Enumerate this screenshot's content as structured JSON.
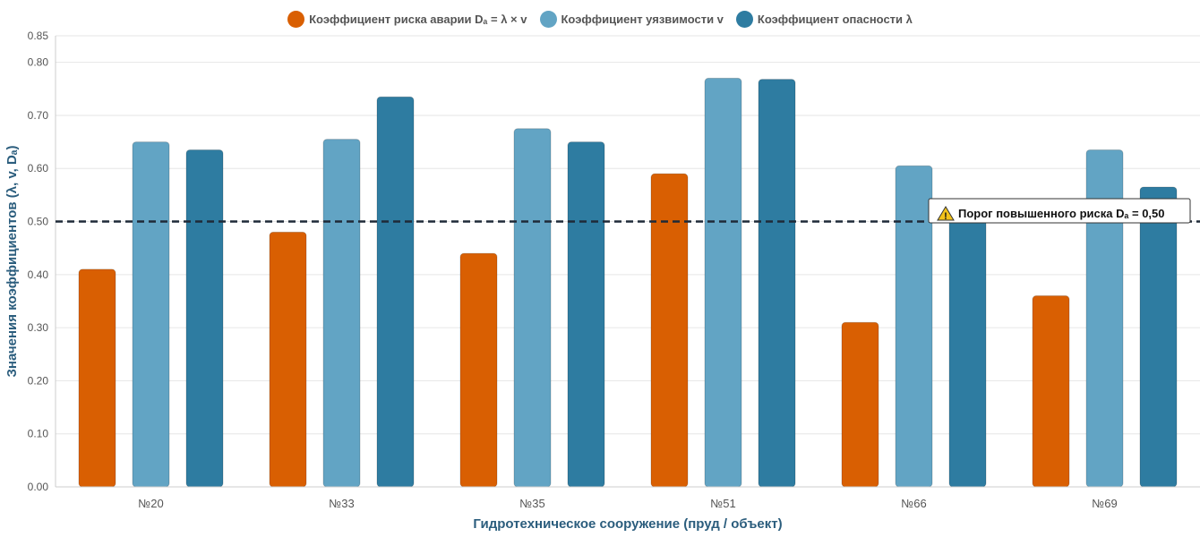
{
  "chart_data": {
    "type": "bar",
    "categories": [
      "№20",
      "№33",
      "№35",
      "№51",
      "№66",
      "№69"
    ],
    "series": [
      {
        "name": "Коэффициент риска аварии Dₐ = λ × v",
        "color": "#d95f02",
        "values": [
          0.41,
          0.48,
          0.44,
          0.59,
          0.31,
          0.36
        ]
      },
      {
        "name": "Коэффициент уязвимости v",
        "color": "#62a4c4",
        "values": [
          0.65,
          0.655,
          0.675,
          0.77,
          0.605,
          0.635
        ]
      },
      {
        "name": "Коэффициент опасности λ",
        "color": "#2e7ca1",
        "values": [
          0.635,
          0.735,
          0.65,
          0.768,
          0.51,
          0.565
        ]
      }
    ],
    "xlabel": "Гидротехническое сооружение (пруд / объект)",
    "ylabel": "Значения коэффициентов (λ, v, Dₐ)",
    "ylim": [
      0,
      0.85
    ],
    "yticks": [
      "0.00",
      "0.10",
      "0.20",
      "0.30",
      "0.40",
      "0.50",
      "0.60",
      "0.70",
      "0.80",
      "0.85"
    ],
    "ytick_values": [
      0,
      0.1,
      0.2,
      0.3,
      0.4,
      0.5,
      0.6,
      0.7,
      0.8,
      0.85
    ],
    "threshold": {
      "value": 0.5,
      "label": "Порог повышенного риска Dₐ = 0,50",
      "icon": "warning-icon"
    },
    "grid": true,
    "legend_position": "top"
  }
}
